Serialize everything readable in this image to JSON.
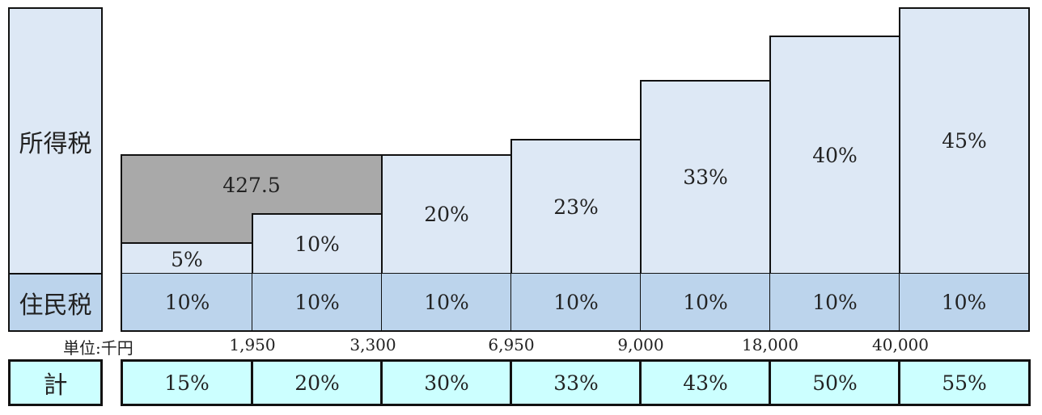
{
  "labels": {
    "income_tax": "所得税",
    "resident_tax": "住民税",
    "total": "計",
    "unit": "単位:千円"
  },
  "highlight_value": "427.5",
  "thresholds": [
    "1,950",
    "3,300",
    "6,950",
    "9,000",
    "18,000",
    "40,000"
  ],
  "brackets": [
    {
      "income_tax": "5%",
      "resident_tax": "10%",
      "total": "15%"
    },
    {
      "income_tax": "10%",
      "resident_tax": "10%",
      "total": "20%"
    },
    {
      "income_tax": "20%",
      "resident_tax": "10%",
      "total": "30%"
    },
    {
      "income_tax": "23%",
      "resident_tax": "10%",
      "total": "33%"
    },
    {
      "income_tax": "33%",
      "resident_tax": "10%",
      "total": "43%"
    },
    {
      "income_tax": "40%",
      "resident_tax": "10%",
      "total": "50%"
    },
    {
      "income_tax": "45%",
      "resident_tax": "10%",
      "total": "55%"
    }
  ],
  "colors": {
    "income_tax_fill": "#dde8f5",
    "resident_tax_fill": "#bcd4ec",
    "highlight_fill": "#a9a9a9",
    "total_fill": "#ccffff",
    "border": "#111111"
  }
}
